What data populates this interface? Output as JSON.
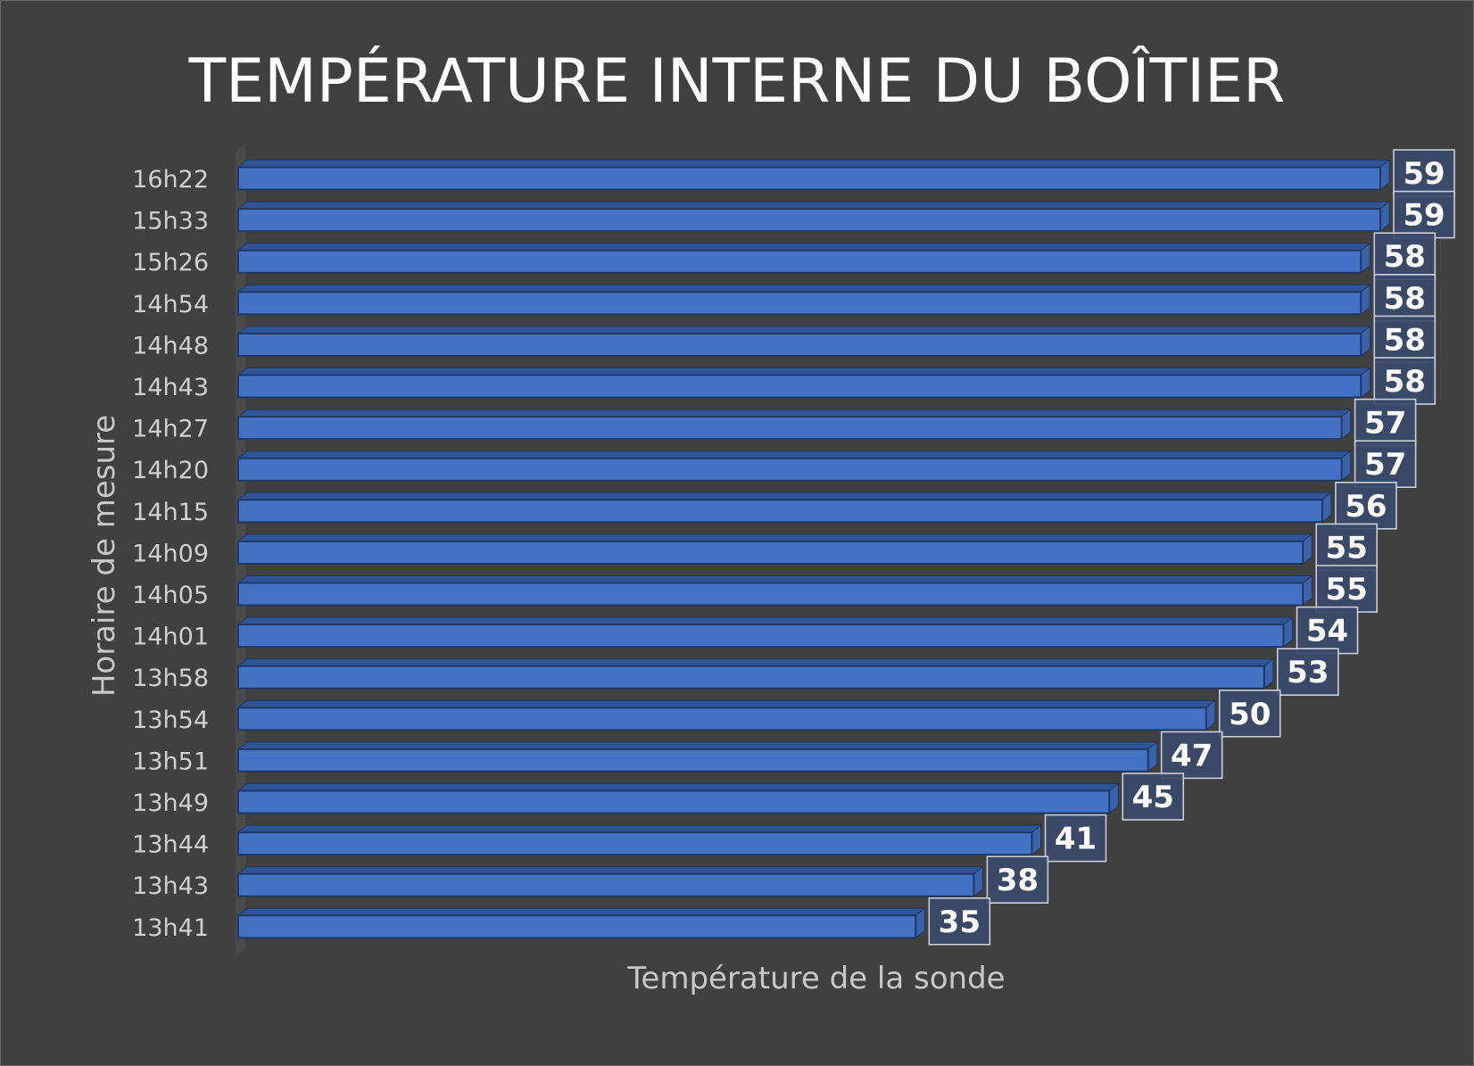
{
  "chart_data": {
    "type": "bar",
    "orientation": "horizontal",
    "title": "TEMPÉRATURE INTERNE DU BOÎTIER",
    "xlabel": "Température de la sonde",
    "ylabel": "Horaire de mesure",
    "categories": [
      "16h22",
      "15h33",
      "15h26",
      "14h54",
      "14h48",
      "14h43",
      "14h27",
      "14h20",
      "14h15",
      "14h09",
      "14h05",
      "14h01",
      "13h58",
      "13h54",
      "13h51",
      "13h49",
      "13h44",
      "13h43",
      "13h41"
    ],
    "values": [
      59,
      59,
      58,
      58,
      58,
      58,
      57,
      57,
      56,
      55,
      55,
      54,
      53,
      50,
      47,
      45,
      41,
      38,
      35
    ],
    "xlim": [
      0,
      59
    ],
    "grid": false,
    "legend": "none",
    "colors": {
      "background": "#404040",
      "bar_front": "#4472c4",
      "bar_top": "#2f5597",
      "bar_side": "#3a63ac",
      "bar_edge": "#1f3864",
      "label_box": "#3b4a6b",
      "label_border": "#c9ced8"
    }
  }
}
